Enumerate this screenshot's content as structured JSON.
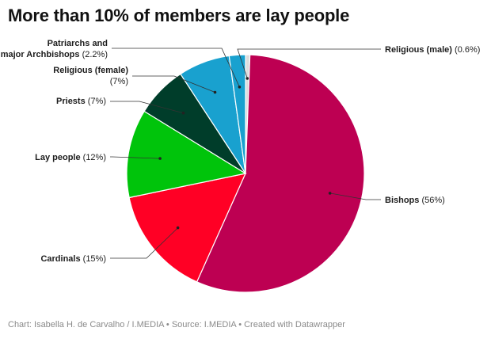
{
  "title": "More than 10% of members are lay people",
  "footer": "Chart: Isabella H. de Carvalho / I.MEDIA • Source: I.MEDIA • Created with Datawrapper",
  "chart_data": {
    "type": "pie",
    "title": "More than 10% of members are lay people",
    "slices": [
      {
        "label": "Religious (male)",
        "value": 0.6,
        "value_label": "(0.6%)",
        "color": "#dcdcdc"
      },
      {
        "label": "Bishops",
        "value": 56,
        "value_label": "(56%)",
        "color": "#bd0052"
      },
      {
        "label": "Cardinals",
        "value": 15,
        "value_label": "(15%)",
        "color": "#ff0025"
      },
      {
        "label": "Lay people",
        "value": 12,
        "value_label": "(12%)",
        "color": "#00c40b"
      },
      {
        "label": "Priests",
        "value": 7,
        "value_label": "(7%)",
        "color": "#003d2a"
      },
      {
        "label": "Religious (female)",
        "value": 7,
        "value_label": "(7%)",
        "color": "#19a1cf"
      },
      {
        "label": "Patriarchs and major Archbishops",
        "value": 2.2,
        "value_label": "(2.2%)",
        "color": "#19a1cf"
      }
    ],
    "start_angle_deg": 0,
    "direction": "clockwise",
    "legend": "none",
    "label_style": "callout-lines"
  }
}
